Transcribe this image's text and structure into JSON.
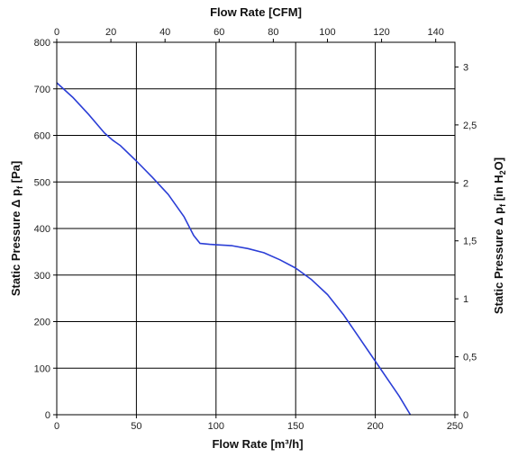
{
  "chart_data": {
    "type": "line",
    "title": "",
    "axes": {
      "bottom": {
        "label": "Flow Rate [m³/h]",
        "range": [
          0,
          250
        ],
        "ticks": [
          0,
          50,
          100,
          150,
          200,
          250
        ],
        "tick_labels": [
          "0",
          "50",
          "100",
          "150",
          "200",
          "250"
        ]
      },
      "top": {
        "label": "Flow Rate [CFM]",
        "range": [
          0,
          147.1
        ],
        "ticks": [
          0,
          20,
          40,
          60,
          80,
          100,
          120,
          140
        ],
        "tick_labels": [
          "0",
          "20",
          "40",
          "60",
          "80",
          "100",
          "120",
          "140"
        ]
      },
      "left": {
        "label_main": "Static Pressure Δ p",
        "label_sub": "f",
        "label_end": " [Pa]",
        "range": [
          0,
          800
        ],
        "ticks": [
          0,
          100,
          200,
          300,
          400,
          500,
          600,
          700,
          800
        ],
        "tick_labels": [
          "0",
          "100",
          "200",
          "300",
          "400",
          "500",
          "600",
          "700",
          "800"
        ]
      },
      "right": {
        "label_main": "Static Pressure Δ p",
        "label_sub": "f",
        "label_mid": " [in H",
        "label_sub2": "2",
        "label_end": "O]",
        "range": [
          0,
          3.213
        ],
        "ticks": [
          0,
          0.5,
          1,
          1.5,
          2,
          2.5,
          3
        ],
        "tick_labels": [
          "0",
          "0,5",
          "1",
          "1,5",
          "2",
          "2,5",
          "3"
        ]
      }
    },
    "grid": true,
    "series": [
      {
        "color": "#2b3ed6",
        "x": [
          0,
          10,
          20,
          30,
          35,
          40,
          50,
          60,
          70,
          80,
          86,
          90,
          93,
          96,
          100,
          110,
          120,
          130,
          140,
          150,
          160,
          170,
          180,
          190,
          200,
          210,
          215,
          222
        ],
        "y": [
          713,
          682,
          645,
          605,
          590,
          578,
          545,
          510,
          473,
          425,
          385,
          368,
          367,
          366,
          365,
          363,
          357,
          348,
          333,
          315,
          290,
          258,
          215,
          165,
          115,
          65,
          40,
          0
        ]
      }
    ]
  }
}
